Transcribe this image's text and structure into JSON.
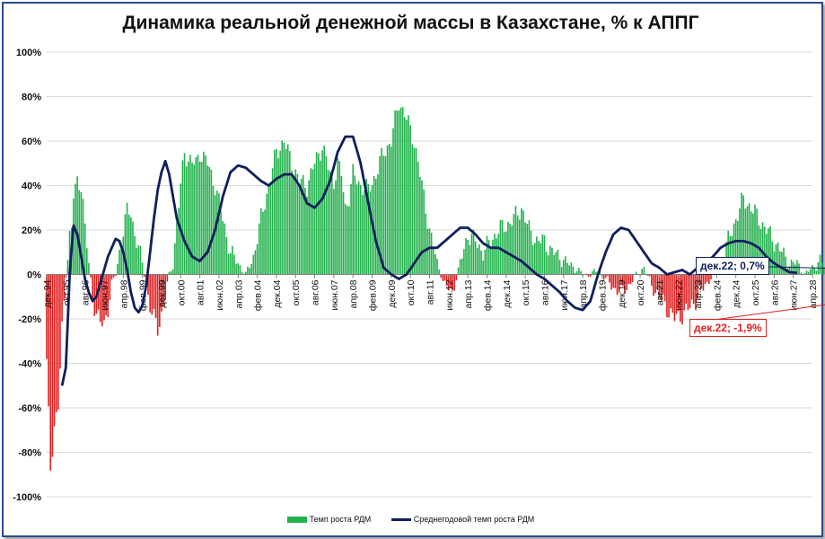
{
  "chart_data": {
    "type": "bar",
    "title": "Динамика реальной денежной массы в Казахстане, % к АППГ",
    "ylim": [
      -100,
      100
    ],
    "y_ticks": [
      "100%",
      "80%",
      "60%",
      "40%",
      "20%",
      "0%",
      "-20%",
      "-40%",
      "-60%",
      "-80%",
      "-100%"
    ],
    "x_tick_labels": [
      "дек.94",
      "окт.95",
      "авг.96",
      "июн.97",
      "апр.98",
      "фев.99",
      "дек.99",
      "окт.00",
      "авг.01",
      "июн.02",
      "апр.03",
      "фев.04",
      "дек.04",
      "окт.05",
      "авг.06",
      "июн.07",
      "апр.08",
      "фев.09",
      "дек.09",
      "окт.10",
      "авг.11",
      "июн.12",
      "апр.13",
      "фев.14",
      "дек.14",
      "окт.15",
      "авг.16",
      "июн.17",
      "апр.18",
      "фев.19",
      "дек.19",
      "окт.20",
      "авг.21",
      "июн.22",
      "апр.23",
      "фев.24",
      "дек.24",
      "окт.25",
      "авг.26",
      "июн.27",
      "апр.28"
    ],
    "x_start": "дек.94",
    "x_step_months": 10,
    "grid": true,
    "legend_position": "bottom",
    "colors": {
      "positive_bar": "#22b14c",
      "negative_bar": "#e02020",
      "line": "#0f1f5c"
    },
    "series": [
      {
        "name": "Темп роста РДМ",
        "kind": "bar",
        "anchor_months": [
          0,
          2,
          4,
          6,
          8,
          10,
          12,
          13,
          14,
          16,
          18,
          19,
          20,
          22,
          24,
          26,
          28,
          30,
          32,
          34,
          36,
          38,
          40,
          42,
          44,
          46,
          48,
          50,
          52,
          54,
          56,
          58,
          60,
          62,
          64,
          66,
          68,
          70,
          72,
          74,
          76,
          78,
          80,
          84,
          88,
          92,
          96,
          100,
          104,
          108,
          112,
          116,
          120,
          124,
          128,
          132,
          136,
          140,
          144,
          148,
          150,
          152,
          154,
          156,
          158,
          160,
          164,
          168,
          172,
          176,
          180,
          184,
          188,
          192,
          196,
          200,
          204,
          208,
          212,
          216,
          220,
          224,
          228,
          232,
          236,
          240,
          244,
          248,
          252,
          256,
          260,
          264,
          268,
          272,
          276,
          280,
          284,
          288,
          292,
          296,
          300,
          304,
          308,
          312,
          316,
          320,
          324,
          328,
          332,
          336,
          340,
          344,
          348,
          352,
          356,
          360,
          364,
          368,
          372,
          376,
          380,
          384,
          388,
          392,
          396,
          400,
          404,
          408,
          410,
          412,
          414,
          416,
          418,
          420,
          424,
          428,
          432,
          436,
          440,
          444,
          448,
          452,
          456,
          460,
          464,
          468,
          470,
          472,
          474,
          476,
          478,
          480,
          482,
          484,
          486,
          488,
          490,
          492,
          494,
          496,
          498,
          500,
          502,
          504,
          506,
          508,
          510,
          512,
          514,
          516,
          520,
          524,
          528,
          532,
          536,
          540,
          544,
          548,
          552,
          556,
          560,
          564
        ],
        "anchor_values": [
          -40,
          -87,
          -68,
          -60,
          -25,
          0,
          17,
          20,
          35,
          42,
          41,
          32,
          20,
          5,
          -10,
          -18,
          -22,
          -22,
          -15,
          -5,
          0,
          10,
          20,
          28,
          28,
          18,
          12,
          5,
          -5,
          -15,
          -20,
          -24,
          -18,
          -10,
          0,
          5,
          22,
          40,
          55,
          52,
          50,
          50,
          55,
          50,
          40,
          25,
          10,
          5,
          0,
          8,
          25,
          40,
          55,
          60,
          50,
          42,
          40,
          50,
          58,
          45,
          42,
          50,
          45,
          30,
          35,
          45,
          40,
          38,
          45,
          55,
          60,
          78,
          70,
          60,
          40,
          20,
          5,
          -5,
          -8,
          5,
          18,
          15,
          10,
          15,
          20,
          22,
          25,
          30,
          20,
          15,
          15,
          10,
          8,
          5,
          3,
          0,
          0,
          2,
          -2,
          -6,
          -8,
          -5,
          0,
          3,
          -5,
          -10,
          -15,
          -20,
          -18,
          -15,
          -10,
          -5,
          0,
          5,
          15,
          25,
          34,
          30,
          25,
          20,
          15,
          10,
          5,
          5,
          0,
          3,
          6,
          2,
          -4,
          0,
          4,
          6,
          5,
          -3,
          0,
          4,
          8,
          12,
          15,
          18,
          18,
          17,
          16,
          15,
          14,
          12,
          10,
          8,
          6,
          3,
          1,
          -1,
          -2,
          -3,
          -4,
          -5,
          -6,
          -6,
          -5,
          -3,
          -2,
          -1.9,
          -2.5,
          -4,
          -5,
          -6,
          -7,
          -8,
          -8,
          -7,
          -6,
          -5,
          -4,
          -3,
          -2
        ]
      },
      {
        "name": "Среднегодовой темп роста РДМ",
        "kind": "line",
        "anchor_months": [
          8,
          10,
          12,
          14,
          16,
          18,
          20,
          22,
          24,
          26,
          28,
          30,
          32,
          34,
          36,
          38,
          40,
          42,
          44,
          46,
          48,
          50,
          52,
          54,
          56,
          58,
          60,
          62,
          64,
          66,
          68,
          70,
          72,
          76,
          80,
          84,
          88,
          92,
          96,
          100,
          104,
          108,
          112,
          116,
          120,
          124,
          128,
          132,
          136,
          140,
          144,
          148,
          152,
          156,
          160,
          164,
          168,
          172,
          176,
          180,
          184,
          188,
          192,
          196,
          200,
          204,
          208,
          212,
          216,
          220,
          224,
          228,
          232,
          236,
          240,
          244,
          248,
          252,
          256,
          260,
          264,
          268,
          272,
          276,
          280,
          284,
          288,
          292,
          296,
          300,
          304,
          308,
          312,
          316,
          320,
          324,
          328,
          332,
          336,
          340,
          344,
          348,
          352,
          356,
          360,
          364,
          368,
          372,
          376,
          380,
          384,
          388,
          392,
          396,
          400,
          404,
          408,
          412,
          416,
          420,
          424,
          428,
          432,
          436,
          440,
          444,
          448,
          452,
          456,
          460,
          464,
          468,
          472,
          476,
          480,
          484,
          488,
          492,
          496,
          500,
          504,
          508
        ],
        "anchor_values": [
          -50,
          -42,
          0,
          22,
          18,
          8,
          -2,
          -8,
          -12,
          -10,
          -4,
          2,
          8,
          12,
          16,
          15,
          10,
          2,
          -8,
          -15,
          -17,
          -14,
          -5,
          10,
          25,
          38,
          46,
          51,
          45,
          35,
          25,
          20,
          15,
          8,
          6,
          10,
          20,
          35,
          46,
          49,
          48,
          45,
          42,
          40,
          43,
          45,
          45,
          40,
          32,
          30,
          34,
          42,
          55,
          62,
          62,
          50,
          32,
          15,
          3,
          0,
          -2,
          0,
          5,
          10,
          12,
          12,
          15,
          18,
          21,
          21,
          18,
          14,
          12,
          12,
          10,
          8,
          6,
          3,
          0,
          -2,
          -5,
          -8,
          -12,
          -15,
          -16,
          -12,
          0,
          10,
          18,
          21,
          20,
          15,
          10,
          5,
          3,
          0,
          1,
          2,
          0,
          3,
          5,
          8,
          12,
          14,
          15,
          15,
          14,
          12,
          8,
          5,
          3,
          1,
          0.7
        ]
      }
    ],
    "annotations": [
      {
        "label": "дек.22; 0,7%",
        "x": "дек.22",
        "y": 0.7,
        "color": "#0f1f5c"
      },
      {
        "label": "дек.22; -1,9%",
        "x": "дек.22",
        "y": -1.9,
        "color": "#e02020"
      }
    ]
  },
  "legend": {
    "bar_label": "Темп роста РДМ",
    "line_label": "Среднегодовой темп роста РДМ"
  }
}
